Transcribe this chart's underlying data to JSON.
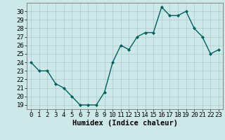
{
  "x": [
    0,
    1,
    2,
    3,
    4,
    5,
    6,
    7,
    8,
    9,
    10,
    11,
    12,
    13,
    14,
    15,
    16,
    17,
    18,
    19,
    20,
    21,
    22,
    23
  ],
  "y": [
    24,
    23,
    23,
    21.5,
    21,
    20,
    19,
    19,
    19,
    20.5,
    24,
    26,
    25.5,
    27,
    27.5,
    27.5,
    30.5,
    29.5,
    29.5,
    30,
    28,
    27,
    25,
    25.5
  ],
  "line_color": "#006060",
  "marker": "D",
  "marker_size": 2,
  "bg_color": "#cce8e8",
  "grid_color": "#aacccc",
  "xlabel": "Humidex (Indice chaleur)",
  "ylim": [
    18.5,
    31.0
  ],
  "xlim": [
    -0.5,
    23.5
  ],
  "yticks": [
    19,
    20,
    21,
    22,
    23,
    24,
    25,
    26,
    27,
    28,
    29,
    30
  ],
  "xticks": [
    0,
    1,
    2,
    3,
    4,
    5,
    6,
    7,
    8,
    9,
    10,
    11,
    12,
    13,
    14,
    15,
    16,
    17,
    18,
    19,
    20,
    21,
    22,
    23
  ],
  "font_size": 6.5,
  "xlabel_font_size": 7.5,
  "line_width": 1.0
}
